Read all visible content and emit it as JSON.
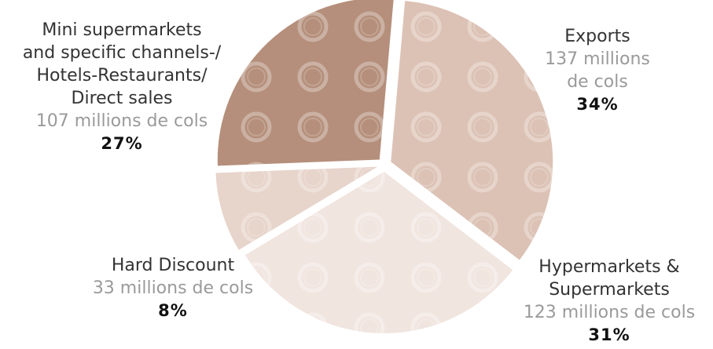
{
  "chart_data": {
    "type": "pie",
    "title": "",
    "slices": [
      {
        "name": "Exports",
        "volume": "137 millions\nde cols",
        "value": 34,
        "percent_label": "34%",
        "color": "#dcc2b5"
      },
      {
        "name": "Hypermarkets &\nSupermarkets",
        "volume": "123 millions de cols",
        "value": 31,
        "percent_label": "31%",
        "color": "#f1e5df"
      },
      {
        "name": "Hard Discount",
        "volume": "33 millions de cols",
        "value": 8,
        "percent_label": "8%",
        "color": "#e7d4ca"
      },
      {
        "name": "Mini supermarkets\nand specific channels-/\nHotels-Restaurants/\nDirect sales",
        "volume": "107 millions de cols",
        "value": 27,
        "percent_label": "27%",
        "color": "#b58f7b"
      }
    ]
  }
}
